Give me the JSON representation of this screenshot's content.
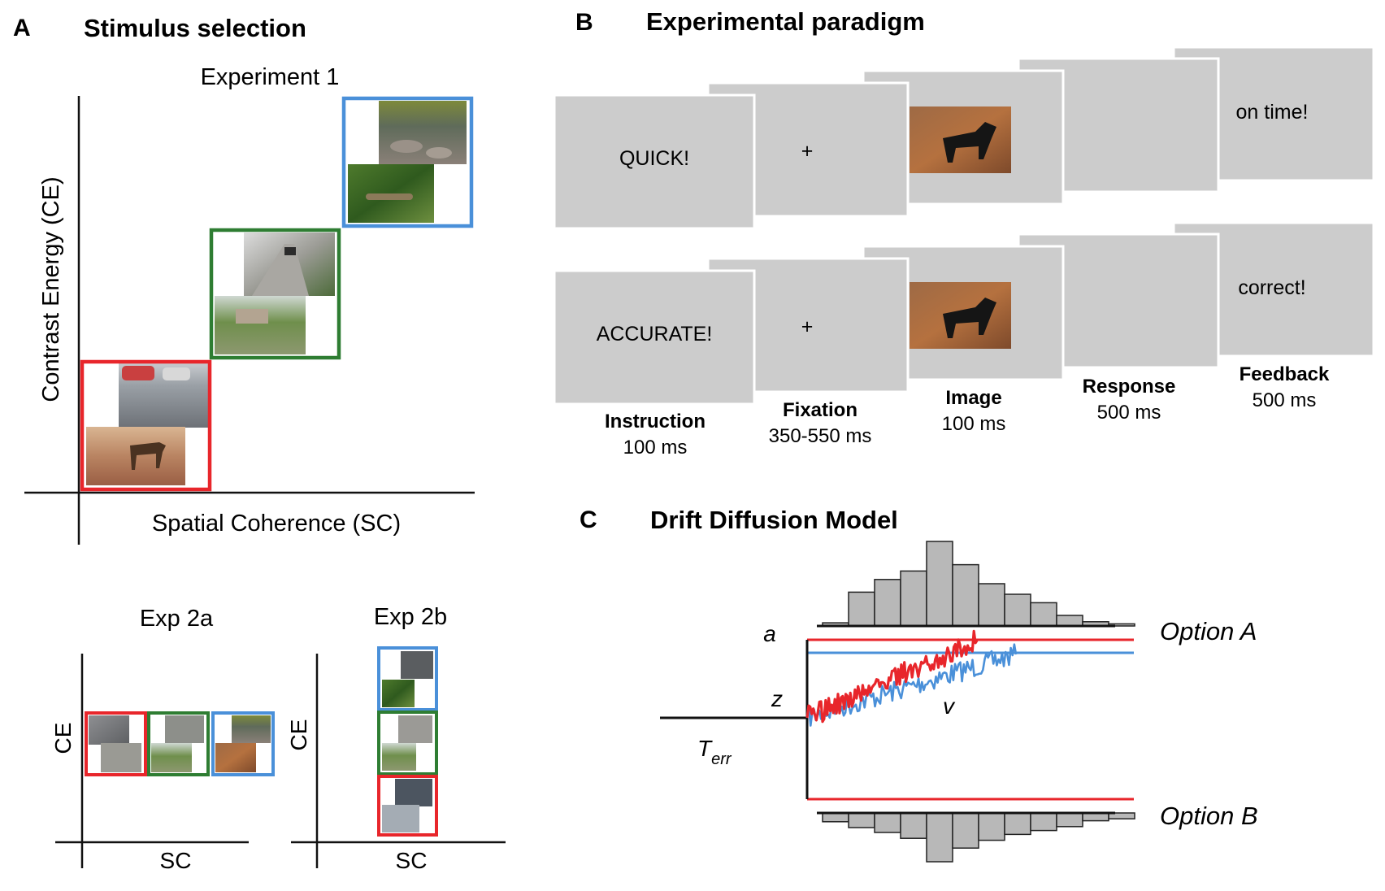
{
  "panelA": {
    "letter": "A",
    "title": "Stimulus selection",
    "exp1": {
      "title": "Experiment 1",
      "y_axis_label": "Contrast Energy (CE)",
      "x_axis_label": "Spatial Coherence (SC)",
      "levels": [
        {
          "level": "low",
          "color": "#e8262b",
          "images": [
            "parking-lot-scene",
            "dog-on-dirt-scene"
          ]
        },
        {
          "level": "mid",
          "color": "#2e7d32",
          "images": [
            "street-with-car-scene",
            "house-with-lawn-scene"
          ]
        },
        {
          "level": "high",
          "color": "#4a90d9",
          "images": [
            "rocky-stream-scene",
            "crocodile-in-foliage-scene"
          ]
        }
      ]
    },
    "exp2a": {
      "title": "Exp 2a",
      "y_axis_label": "CE",
      "x_axis_label": "SC",
      "arrangement": "horizontal"
    },
    "exp2b": {
      "title": "Exp 2b",
      "y_axis_label": "CE",
      "x_axis_label": "SC",
      "arrangement": "vertical"
    }
  },
  "panelB": {
    "letter": "B",
    "title": "Experimental paradigm",
    "rows": [
      {
        "instruction": "QUICK!",
        "fixation": "+",
        "feedback": "on time!"
      },
      {
        "instruction": "ACCURATE!",
        "fixation": "+",
        "feedback": "correct!"
      }
    ],
    "steps": [
      {
        "name": "Instruction",
        "duration": "100 ms"
      },
      {
        "name": "Fixation",
        "duration": "350-550 ms"
      },
      {
        "name": "Image",
        "duration": "100 ms"
      },
      {
        "name": "Response",
        "duration": "500 ms"
      },
      {
        "name": "Feedback",
        "duration": "500 ms"
      }
    ],
    "screen_color": "#cccccc"
  },
  "panelC": {
    "letter": "C",
    "title": "Drift Diffusion Model",
    "label_a": "a",
    "label_z": "z",
    "label_v": "v",
    "label_T": "T",
    "label_T_sub": "err",
    "option_a": "Option A",
    "option_b": "Option B",
    "hist_top": [
      3,
      32,
      44,
      52,
      80,
      58,
      40,
      30,
      22,
      10,
      4,
      2
    ],
    "hist_bottom": [
      9,
      15,
      20,
      26,
      50,
      36,
      28,
      22,
      18,
      14,
      8,
      6
    ],
    "colors": {
      "red": "#e8262b",
      "blue": "#4a90d9",
      "bar": "#b8b8b8"
    }
  }
}
